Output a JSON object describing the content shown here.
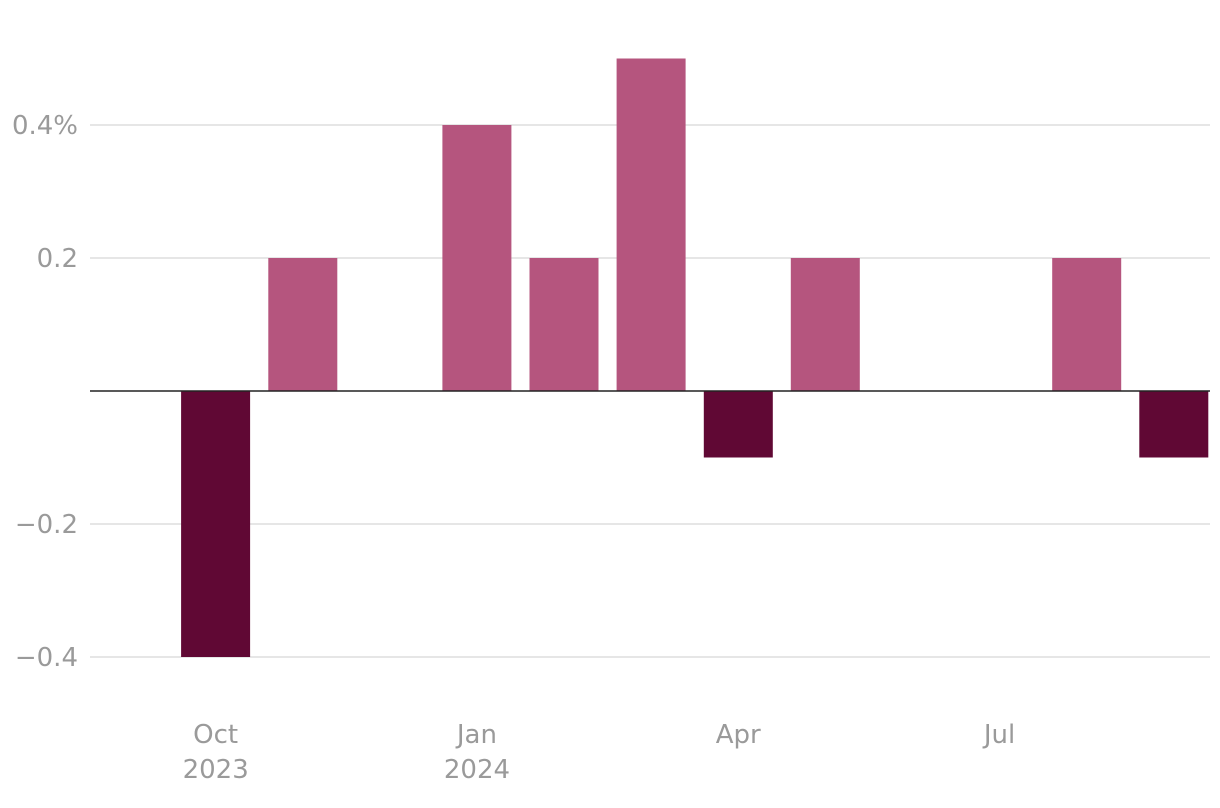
{
  "chart_data": {
    "type": "bar",
    "title": "",
    "xlabel": "",
    "ylabel": "",
    "categories": [
      "2023-09",
      "2023-10",
      "2023-11",
      "2023-12",
      "2024-01",
      "2024-02",
      "2024-03",
      "2024-04",
      "2024-05",
      "2024-06",
      "2024-07",
      "2024-08",
      "2024-09"
    ],
    "values": [
      0.0,
      -0.4,
      0.2,
      0.0,
      0.4,
      0.2,
      0.5,
      -0.1,
      0.2,
      0.0,
      0.0,
      0.2,
      -0.1
    ],
    "ylim": [
      -0.45,
      0.55
    ],
    "y_ticks": [
      {
        "value": 0.4,
        "label": "0.4%"
      },
      {
        "value": 0.2,
        "label": "0.2"
      },
      {
        "value": -0.2,
        "label": "−0.2"
      },
      {
        "value": -0.4,
        "label": "−0.4"
      }
    ],
    "x_ticks": [
      {
        "category": "2023-10",
        "line1": "Oct",
        "line2": "2023"
      },
      {
        "category": "2024-01",
        "line1": "Jan",
        "line2": "2024"
      },
      {
        "category": "2024-04",
        "line1": "Apr",
        "line2": ""
      },
      {
        "category": "2024-07",
        "line1": "Jul",
        "line2": ""
      }
    ],
    "grid": true,
    "colors": {
      "positive": "#b5557e",
      "negative": "#600834"
    }
  }
}
